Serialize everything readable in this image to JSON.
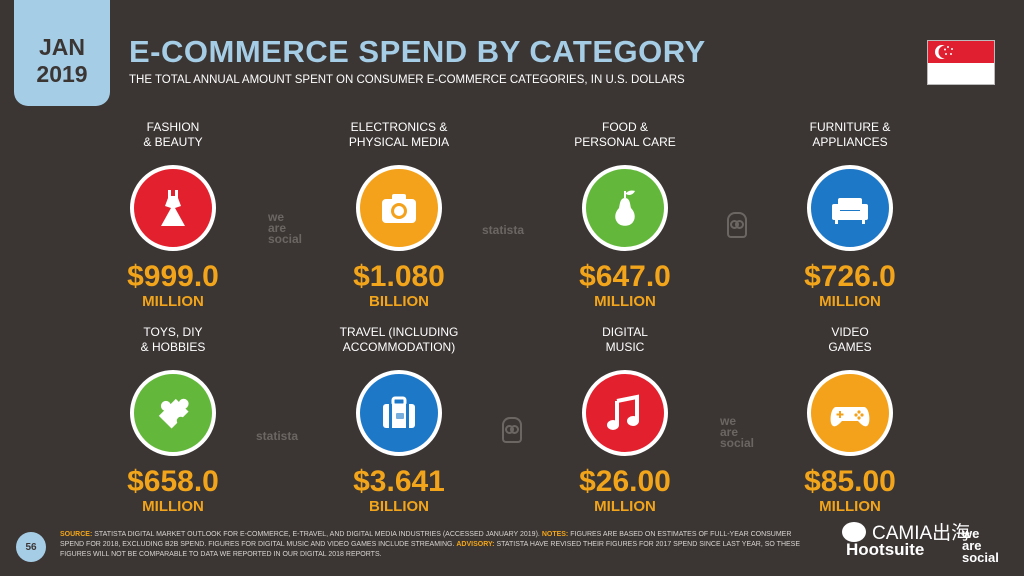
{
  "header": {
    "date_line1": "JAN",
    "date_line2": "2019",
    "title": "E-COMMERCE SPEND BY CATEGORY",
    "subtitle": "THE TOTAL ANNUAL AMOUNT SPENT ON CONSUMER E-COMMERCE CATEGORIES, IN U.S. DOLLARS"
  },
  "colors": {
    "background": "#3b3634",
    "accent_blue": "#a6cde6",
    "amount_orange": "#f2a51a",
    "red": "#e3202e",
    "orange": "#f4a21b",
    "green": "#63b83b",
    "blue": "#1e78c8"
  },
  "categories": [
    {
      "label_1": "FASHION",
      "label_2": "& BEAUTY",
      "amount": "$999.0",
      "unit": "MILLION",
      "icon": "dress-icon",
      "color": "#e3202e"
    },
    {
      "label_1": "ELECTRONICS &",
      "label_2": "PHYSICAL MEDIA",
      "amount": "$1.080",
      "unit": "BILLION",
      "icon": "camera-icon",
      "color": "#f4a21b"
    },
    {
      "label_1": "FOOD &",
      "label_2": "PERSONAL CARE",
      "amount": "$647.0",
      "unit": "MILLION",
      "icon": "pear-icon",
      "color": "#63b83b"
    },
    {
      "label_1": "FURNITURE &",
      "label_2": "APPLIANCES",
      "amount": "$726.0",
      "unit": "MILLION",
      "icon": "sofa-icon",
      "color": "#1e78c8"
    },
    {
      "label_1": "TOYS, DIY",
      "label_2": "& HOBBIES",
      "amount": "$658.0",
      "unit": "MILLION",
      "icon": "puzzle-icon",
      "color": "#63b83b"
    },
    {
      "label_1": "TRAVEL (INCLUDING",
      "label_2": "ACCOMMODATION)",
      "amount": "$3.641",
      "unit": "BILLION",
      "icon": "suitcase-icon",
      "color": "#1e78c8"
    },
    {
      "label_1": "DIGITAL",
      "label_2": "MUSIC",
      "amount": "$26.00",
      "unit": "MILLION",
      "icon": "music-note-icon",
      "color": "#e3202e"
    },
    {
      "label_1": "VIDEO",
      "label_2": "GAMES",
      "amount": "$85.00",
      "unit": "MILLION",
      "icon": "gamepad-icon",
      "color": "#f4a21b"
    }
  ],
  "watermarks": {
    "we": "we",
    "are": "are",
    "social": "social",
    "statista": "statista"
  },
  "footer": {
    "page_number": "56",
    "source_label": "SOURCE:",
    "source_text": "STATISTA DIGITAL MARKET OUTLOOK FOR E-COMMERCE, E-TRAVEL, AND DIGITAL MEDIA INDUSTRIES (ACCESSED JANUARY 2019).",
    "notes_label": "NOTES:",
    "notes_text": "FIGURES ARE BASED ON ESTIMATES OF FULL-YEAR CONSUMER SPEND FOR 2018, EXCLUDING B2B SPEND. FIGURES FOR DIGITAL MUSIC AND VIDEO GAMES INCLUDE STREAMING.",
    "advisory_label": "ADVISORY:",
    "advisory_text": "STATISTA HAVE REVISED THEIR FIGURES FOR 2017 SPEND SINCE LAST YEAR, SO THESE FIGURES WILL NOT BE COMPARABLE TO DATA WE REPORTED IN OUR DIGITAL 2018 REPORTS.",
    "brand_camia": "CAMIA出海",
    "brand_hootsuite": "Hootsuite",
    "brand_was_1": "we",
    "brand_was_2": "are",
    "brand_was_3": "social"
  }
}
